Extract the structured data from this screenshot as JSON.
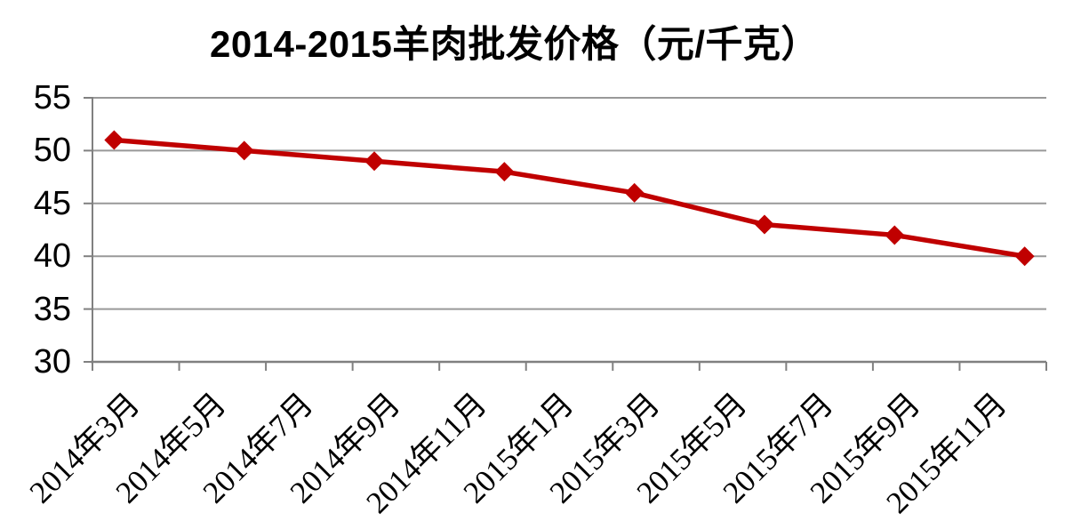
{
  "chart_data": {
    "type": "line",
    "title": "2014-2015羊肉批发价格（元/千克）",
    "y_axis": {
      "min": 30,
      "max": 55,
      "step": 5,
      "ticks": [
        30,
        35,
        40,
        45,
        50,
        55
      ]
    },
    "x_axis": {
      "tick_labels": [
        "2014年3月",
        "2014年5月",
        "2014年7月",
        "2014年9月",
        "2014年11月",
        "2015年1月",
        "2015年3月",
        "2015年5月",
        "2015年7月",
        "2015年9月",
        "2015年11月"
      ],
      "start_month": "2014年3月",
      "months_total": 22,
      "tick_interval_months": 2,
      "label_rotation_deg": 45
    },
    "grid": "horizontal",
    "legend_position": "none",
    "series": [
      {
        "name": "羊肉批发价格",
        "color": "#C00000",
        "marker": "diamond",
        "points": [
          {
            "x": "2014年3月",
            "y": 51
          },
          {
            "x": "2014年6月",
            "y": 50
          },
          {
            "x": "2014年9月",
            "y": 49
          },
          {
            "x": "2014年12月",
            "y": 48
          },
          {
            "x": "2015年3月",
            "y": 46
          },
          {
            "x": "2015年6月",
            "y": 43
          },
          {
            "x": "2015年9月",
            "y": 42
          },
          {
            "x": "2015年12月",
            "y": 40
          }
        ]
      }
    ],
    "colors": {
      "axis": "#808080",
      "gridline": "#999999",
      "text": "#000000",
      "background": "#FFFFFF"
    }
  }
}
